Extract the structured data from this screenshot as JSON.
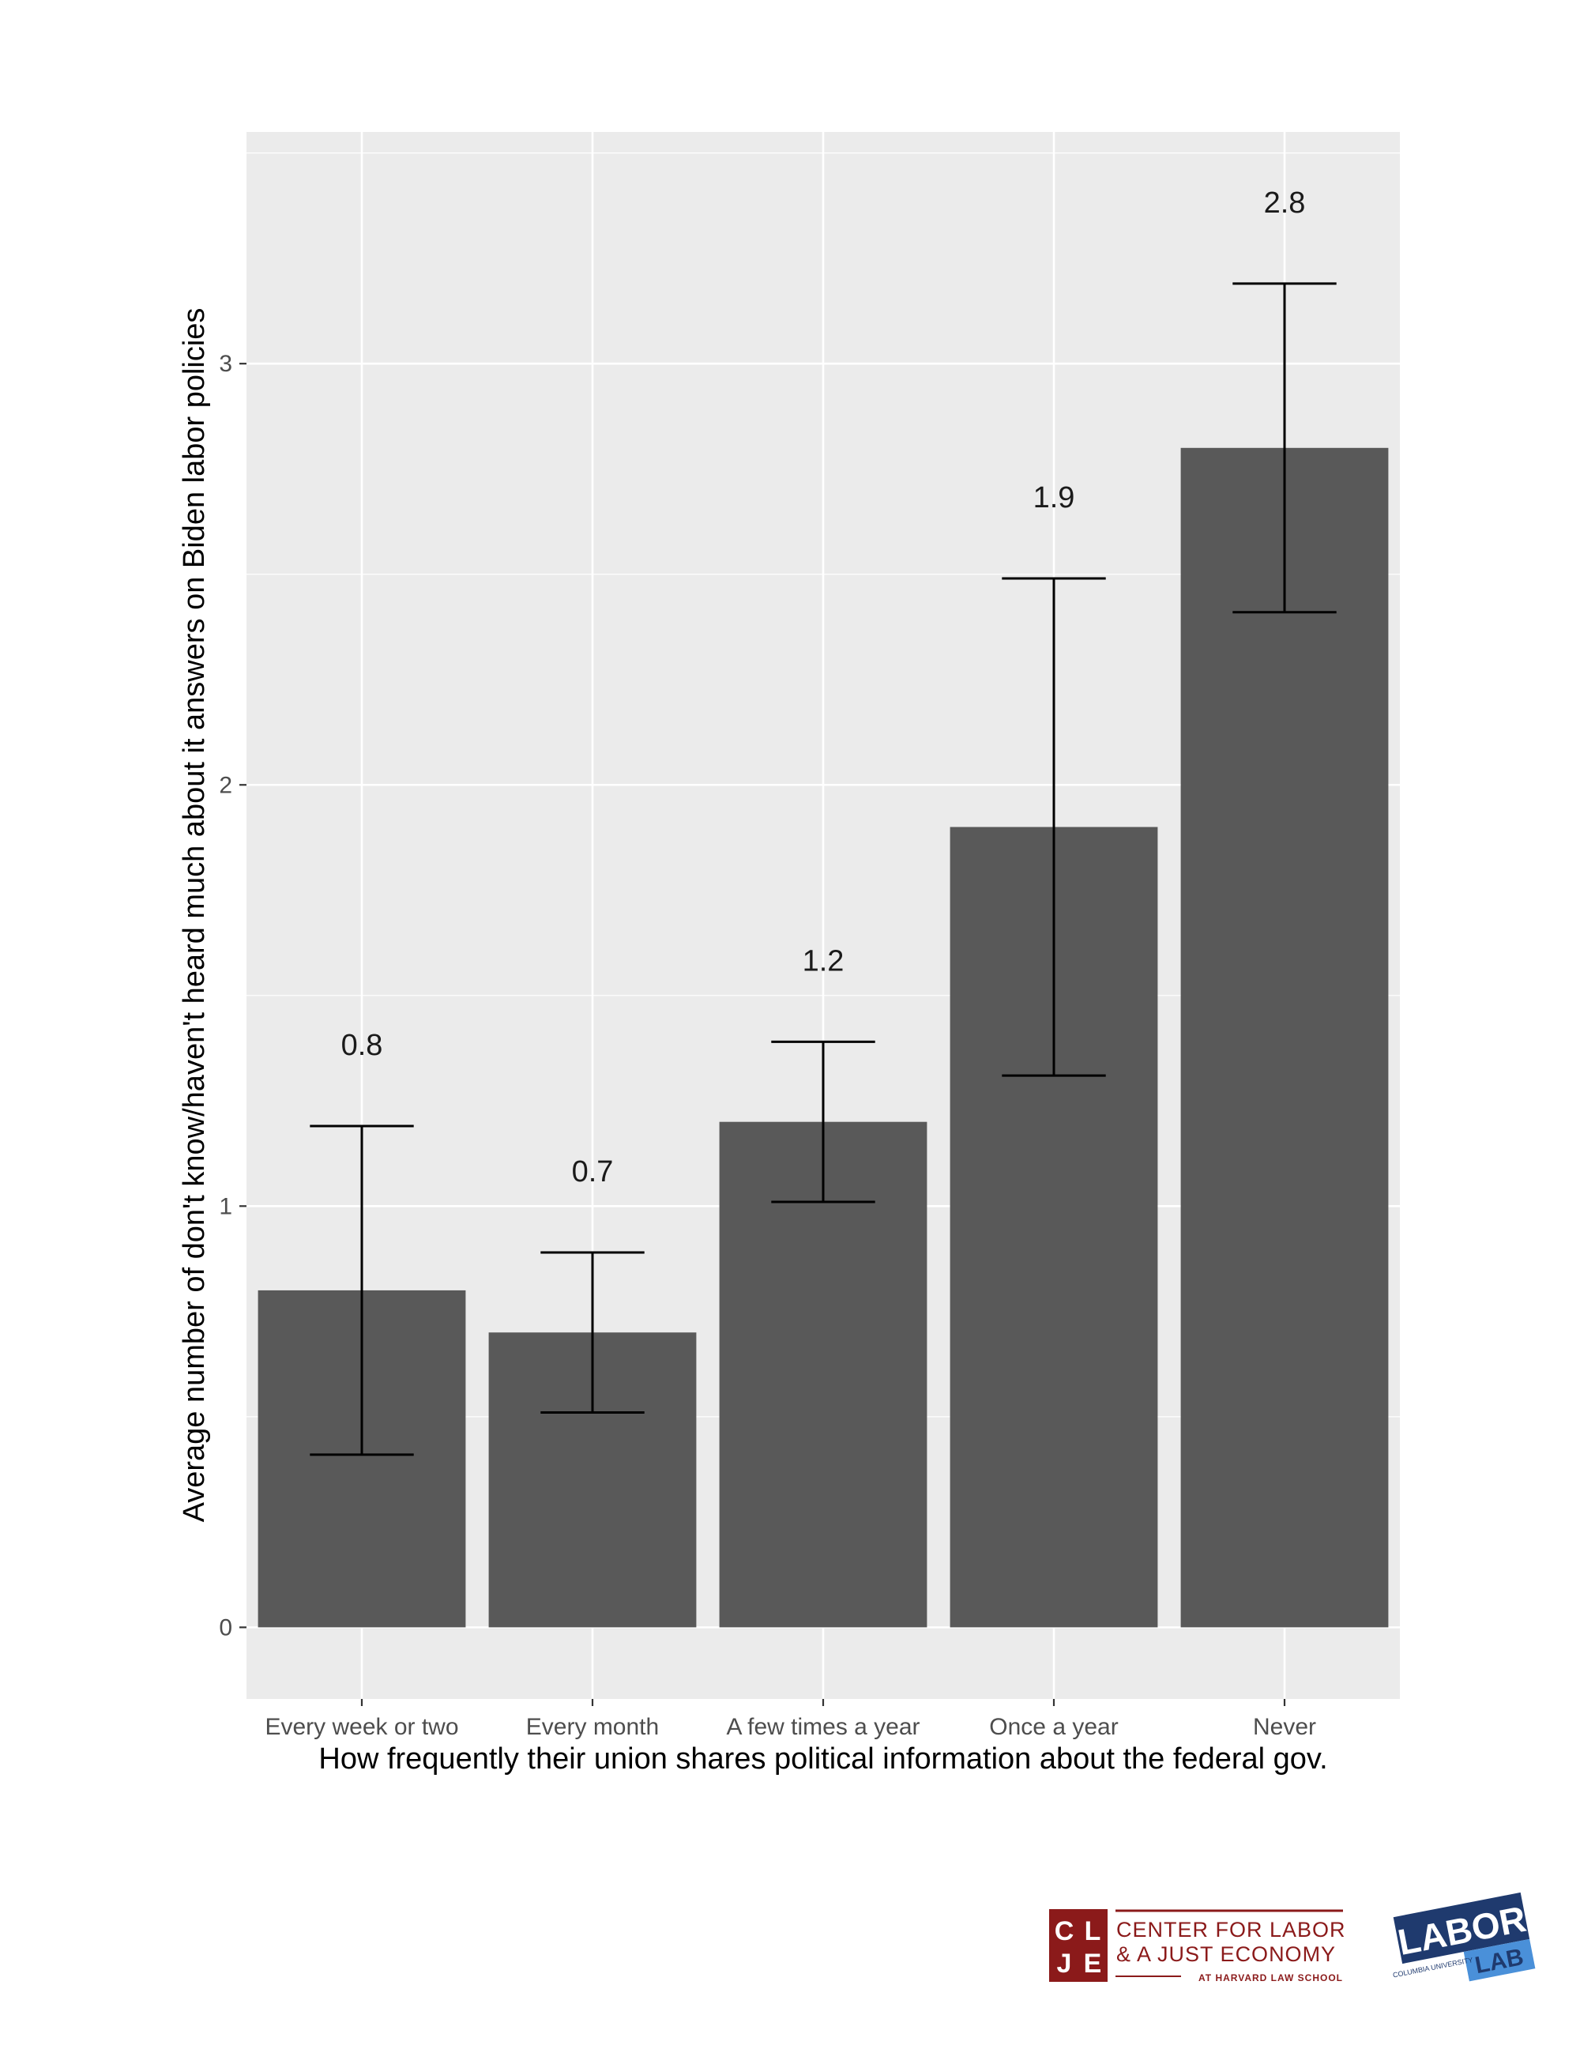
{
  "chart_data": {
    "type": "bar",
    "categories": [
      "Every week or two",
      "Every month",
      "A few times a year",
      "Once a year",
      "Never"
    ],
    "values": [
      0.8,
      0.7,
      1.2,
      1.9,
      2.8
    ],
    "value_labels": [
      "0.8",
      "0.7",
      "1.2",
      "1.9",
      "2.8"
    ],
    "error_low": [
      0.41,
      0.51,
      1.01,
      1.31,
      2.41
    ],
    "error_high": [
      1.19,
      0.89,
      1.39,
      2.49,
      3.19
    ],
    "xlabel": "How frequently their union shares political information about the federal gov.",
    "ylabel": "Average number of don't know/haven't heard much about it answers on Biden labor policies",
    "ylim": [
      -0.17,
      3.55
    ],
    "yticks": [
      0,
      1,
      2,
      3
    ],
    "ytick_labels": [
      "0",
      "1",
      "2",
      "3"
    ],
    "grid": true,
    "colors": {
      "panel": "#EBEBEB",
      "grid": "#FFFFFF",
      "bar": "#595959",
      "errorbar": "#000000"
    }
  },
  "logos": {
    "clje": {
      "mark_letters": [
        "C",
        "L",
        "J",
        "E"
      ],
      "line1": "CENTER FOR LABOR",
      "line2": "& A JUST ECONOMY",
      "line3": "AT HARVARD LAW SCHOOL",
      "color": "#8B1A1A"
    },
    "laborlab": {
      "word1": "LABOR",
      "word2": "LAB",
      "small": "COLUMBIA UNIVERSITY",
      "color_dark": "#1F3A6E",
      "color_light": "#4A90D9"
    }
  }
}
